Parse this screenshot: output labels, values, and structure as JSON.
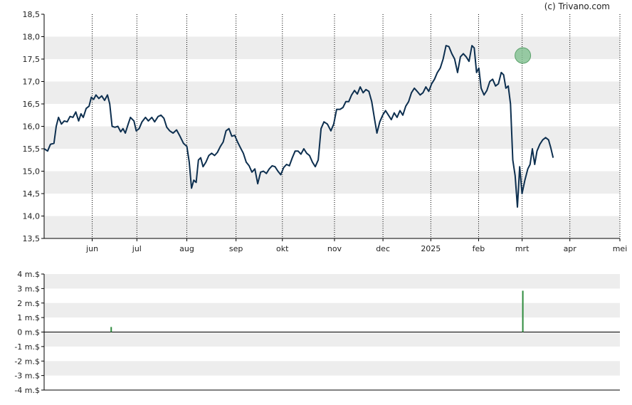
{
  "watermark": "(c) Trivano.com",
  "colors": {
    "band": "#ededed",
    "line": "#0d2f4f",
    "volume_bar": "#2e8b3d",
    "marker_fill": "#7fbf8f",
    "marker_stroke": "#5aa06a",
    "axis": "#000000",
    "vgrid": "#000000"
  },
  "chart_data": [
    {
      "type": "line",
      "title": "",
      "xlabel": "",
      "ylabel": "",
      "ylim": [
        13.5,
        18.5
      ],
      "yticks": [
        "13,5",
        "14,0",
        "14,5",
        "15,0",
        "15,5",
        "16,0",
        "16,5",
        "17,0",
        "17,5",
        "18,0",
        "18,5"
      ],
      "xticks": [
        {
          "label": "jun",
          "t": 0.0835
        },
        {
          "label": "jul",
          "t": 0.1611
        },
        {
          "label": "aug",
          "t": 0.2478
        },
        {
          "label": "sep",
          "t": 0.3333
        },
        {
          "label": "okt",
          "t": 0.4138
        },
        {
          "label": "nov",
          "t": 0.5043
        },
        {
          "label": "dec",
          "t": 0.5885
        },
        {
          "label": "2025",
          "t": 0.6716
        },
        {
          "label": "feb",
          "t": 0.7546
        },
        {
          "label": "mrt",
          "t": 0.8302
        },
        {
          "label": "apr",
          "t": 0.9131
        },
        {
          "label": "mei",
          "t": 1.0
        }
      ],
      "grid": "alternating horizontal bands, dotted vertical month lines",
      "marker": {
        "t": 0.8314,
        "value": 17.58
      },
      "series": [
        {
          "values": [
            [
              0.0,
              15.5
            ],
            [
              0.006,
              15.45
            ],
            [
              0.011,
              15.6
            ],
            [
              0.017,
              15.62
            ],
            [
              0.021,
              16.0
            ],
            [
              0.025,
              16.2
            ],
            [
              0.03,
              16.05
            ],
            [
              0.035,
              16.12
            ],
            [
              0.04,
              16.1
            ],
            [
              0.045,
              16.22
            ],
            [
              0.05,
              16.2
            ],
            [
              0.055,
              16.32
            ],
            [
              0.06,
              16.12
            ],
            [
              0.064,
              16.28
            ],
            [
              0.068,
              16.2
            ],
            [
              0.073,
              16.4
            ],
            [
              0.078,
              16.45
            ],
            [
              0.082,
              16.65
            ],
            [
              0.086,
              16.6
            ],
            [
              0.09,
              16.7
            ],
            [
              0.095,
              16.62
            ],
            [
              0.1,
              16.68
            ],
            [
              0.105,
              16.58
            ],
            [
              0.11,
              16.7
            ],
            [
              0.114,
              16.5
            ],
            [
              0.118,
              16.0
            ],
            [
              0.123,
              15.98
            ],
            [
              0.128,
              16.0
            ],
            [
              0.133,
              15.88
            ],
            [
              0.137,
              15.95
            ],
            [
              0.141,
              15.85
            ],
            [
              0.146,
              16.05
            ],
            [
              0.15,
              16.2
            ],
            [
              0.156,
              16.12
            ],
            [
              0.16,
              15.9
            ],
            [
              0.165,
              15.95
            ],
            [
              0.17,
              16.1
            ],
            [
              0.176,
              16.2
            ],
            [
              0.181,
              16.12
            ],
            [
              0.187,
              16.2
            ],
            [
              0.192,
              16.1
            ],
            [
              0.198,
              16.22
            ],
            [
              0.203,
              16.25
            ],
            [
              0.208,
              16.18
            ],
            [
              0.213,
              15.98
            ],
            [
              0.218,
              15.9
            ],
            [
              0.224,
              15.85
            ],
            [
              0.23,
              15.92
            ],
            [
              0.236,
              15.78
            ],
            [
              0.242,
              15.62
            ],
            [
              0.248,
              15.55
            ],
            [
              0.252,
              15.2
            ],
            [
              0.256,
              14.62
            ],
            [
              0.26,
              14.8
            ],
            [
              0.264,
              14.75
            ],
            [
              0.268,
              15.25
            ],
            [
              0.272,
              15.3
            ],
            [
              0.276,
              15.1
            ],
            [
              0.281,
              15.2
            ],
            [
              0.286,
              15.35
            ],
            [
              0.291,
              15.4
            ],
            [
              0.296,
              15.35
            ],
            [
              0.301,
              15.42
            ],
            [
              0.306,
              15.55
            ],
            [
              0.311,
              15.65
            ],
            [
              0.316,
              15.9
            ],
            [
              0.321,
              15.95
            ],
            [
              0.326,
              15.78
            ],
            [
              0.331,
              15.8
            ],
            [
              0.336,
              15.65
            ],
            [
              0.341,
              15.52
            ],
            [
              0.346,
              15.4
            ],
            [
              0.351,
              15.2
            ],
            [
              0.356,
              15.12
            ],
            [
              0.361,
              14.98
            ],
            [
              0.366,
              15.05
            ],
            [
              0.371,
              14.72
            ],
            [
              0.376,
              14.98
            ],
            [
              0.381,
              15.0
            ],
            [
              0.386,
              14.95
            ],
            [
              0.391,
              15.05
            ],
            [
              0.396,
              15.12
            ],
            [
              0.401,
              15.1
            ],
            [
              0.406,
              15.0
            ],
            [
              0.411,
              14.92
            ],
            [
              0.416,
              15.08
            ],
            [
              0.421,
              15.15
            ],
            [
              0.426,
              15.12
            ],
            [
              0.431,
              15.3
            ],
            [
              0.436,
              15.45
            ],
            [
              0.441,
              15.45
            ],
            [
              0.446,
              15.38
            ],
            [
              0.451,
              15.5
            ],
            [
              0.456,
              15.4
            ],
            [
              0.461,
              15.35
            ],
            [
              0.466,
              15.2
            ],
            [
              0.471,
              15.1
            ],
            [
              0.476,
              15.25
            ],
            [
              0.481,
              15.95
            ],
            [
              0.486,
              16.1
            ],
            [
              0.492,
              16.05
            ],
            [
              0.498,
              15.9
            ],
            [
              0.503,
              16.05
            ],
            [
              0.508,
              16.38
            ],
            [
              0.514,
              16.38
            ],
            [
              0.519,
              16.42
            ],
            [
              0.524,
              16.55
            ],
            [
              0.529,
              16.55
            ],
            [
              0.534,
              16.7
            ],
            [
              0.539,
              16.8
            ],
            [
              0.544,
              16.72
            ],
            [
              0.549,
              16.88
            ],
            [
              0.554,
              16.75
            ],
            [
              0.559,
              16.82
            ],
            [
              0.564,
              16.78
            ],
            [
              0.569,
              16.55
            ],
            [
              0.574,
              16.15
            ],
            [
              0.578,
              15.85
            ],
            [
              0.583,
              16.1
            ],
            [
              0.588,
              16.25
            ],
            [
              0.593,
              16.35
            ],
            [
              0.598,
              16.25
            ],
            [
              0.603,
              16.15
            ],
            [
              0.608,
              16.3
            ],
            [
              0.613,
              16.2
            ],
            [
              0.618,
              16.35
            ],
            [
              0.623,
              16.25
            ],
            [
              0.628,
              16.45
            ],
            [
              0.633,
              16.55
            ],
            [
              0.638,
              16.75
            ],
            [
              0.643,
              16.85
            ],
            [
              0.648,
              16.78
            ],
            [
              0.653,
              16.7
            ],
            [
              0.658,
              16.75
            ],
            [
              0.663,
              16.88
            ],
            [
              0.668,
              16.78
            ],
            [
              0.673,
              16.95
            ],
            [
              0.678,
              17.05
            ],
            [
              0.683,
              17.2
            ],
            [
              0.688,
              17.3
            ],
            [
              0.693,
              17.5
            ],
            [
              0.698,
              17.8
            ],
            [
              0.703,
              17.78
            ],
            [
              0.708,
              17.62
            ],
            [
              0.713,
              17.5
            ],
            [
              0.718,
              17.2
            ],
            [
              0.723,
              17.55
            ],
            [
              0.728,
              17.62
            ],
            [
              0.733,
              17.55
            ],
            [
              0.738,
              17.45
            ],
            [
              0.743,
              17.8
            ],
            [
              0.747,
              17.75
            ],
            [
              0.751,
              17.2
            ],
            [
              0.755,
              17.3
            ],
            [
              0.759,
              16.85
            ],
            [
              0.764,
              16.7
            ],
            [
              0.769,
              16.8
            ],
            [
              0.774,
              17.0
            ],
            [
              0.779,
              17.05
            ],
            [
              0.784,
              16.9
            ],
            [
              0.789,
              16.95
            ],
            [
              0.794,
              17.2
            ],
            [
              0.798,
              17.15
            ],
            [
              0.802,
              16.85
            ],
            [
              0.806,
              16.9
            ],
            [
              0.81,
              16.5
            ],
            [
              0.814,
              15.25
            ],
            [
              0.818,
              14.9
            ],
            [
              0.822,
              14.2
            ],
            [
              0.826,
              15.1
            ],
            [
              0.83,
              14.5
            ],
            [
              0.835,
              14.8
            ],
            [
              0.84,
              15.05
            ],
            [
              0.844,
              15.15
            ],
            [
              0.848,
              15.5
            ],
            [
              0.852,
              15.15
            ],
            [
              0.856,
              15.45
            ],
            [
              0.861,
              15.6
            ],
            [
              0.866,
              15.7
            ],
            [
              0.871,
              15.75
            ],
            [
              0.876,
              15.7
            ],
            [
              0.88,
              15.52
            ],
            [
              0.884,
              15.3
            ]
          ]
        }
      ]
    },
    {
      "type": "bar",
      "title": "",
      "xlabel": "",
      "ylabel": "",
      "ylim": [
        -4,
        4
      ],
      "yticks": [
        "-4 m.$",
        "-3 m.$",
        "-2 m.$",
        "-1 m.$",
        "0 m.$",
        "1 m.$",
        "2 m.$",
        "3 m.$",
        "4 m.$"
      ],
      "series": [
        {
          "values": [
            {
              "t": 0.1165,
              "value": 0.35
            },
            {
              "t": 0.8314,
              "value": 2.85
            }
          ]
        }
      ]
    }
  ]
}
